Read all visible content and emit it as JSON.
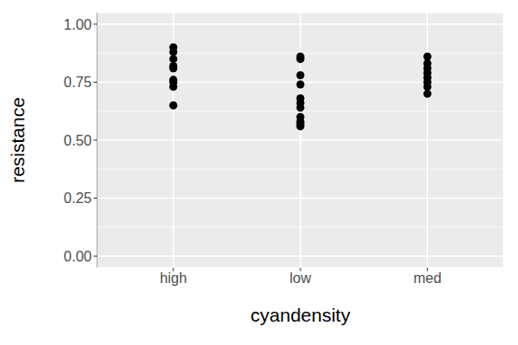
{
  "chart_data": {
    "type": "scatter",
    "x_label": "cyandensity",
    "y_label": "resistance",
    "categories": [
      "high",
      "low",
      "med"
    ],
    "values": [
      [
        0.9,
        0.88,
        0.85,
        0.82,
        0.81,
        0.76,
        0.75,
        0.73,
        0.65
      ],
      [
        0.86,
        0.85,
        0.78,
        0.74,
        0.68,
        0.66,
        0.64,
        0.6,
        0.58,
        0.57,
        0.56
      ],
      [
        0.86,
        0.83,
        0.81,
        0.79,
        0.77,
        0.75,
        0.73,
        0.7
      ]
    ],
    "color": "#000000",
    "marker": "circle",
    "ylim": [
      -0.05,
      1.05
    ],
    "yticks": [
      {
        "value": 0,
        "label": "0.00"
      },
      0.25,
      {
        "value": 0.5,
        "label": "0.50"
      },
      0.75,
      {
        "value": 1,
        "label": "1.00"
      }
    ],
    "grid": true
  }
}
